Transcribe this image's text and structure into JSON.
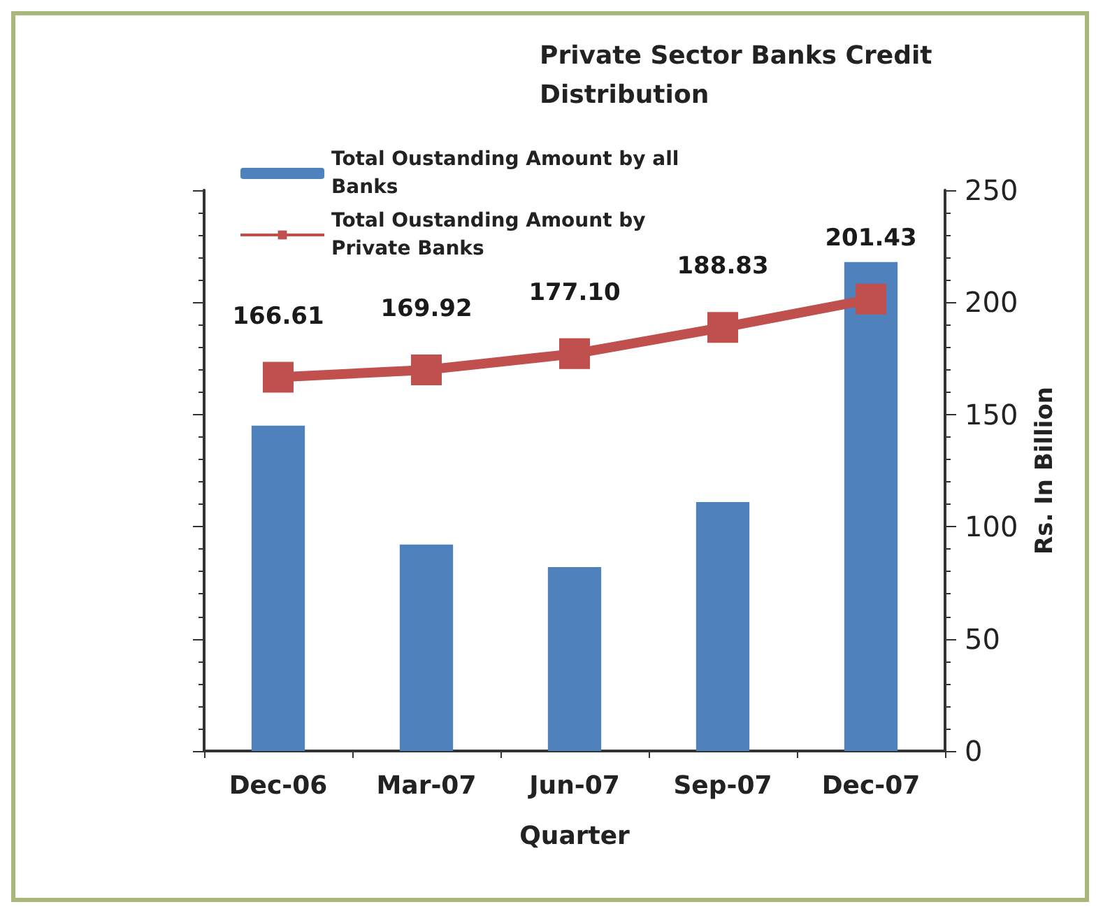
{
  "chart_data": {
    "type": "bar",
    "title": "Private Sector Banks Credit Distribution",
    "xlabel": "Quarter",
    "ylabel": "Rs. In Billion",
    "categories": [
      "Dec-06",
      "Mar-07",
      "Jun-07",
      "Sep-07",
      "Dec-07"
    ],
    "series": [
      {
        "name": "Total Oustanding Amount by all Banks",
        "color": "#4f81bd",
        "values": [
          145,
          92,
          82,
          111,
          218
        ]
      },
      {
        "name": "Total Oustanding Amount by Private Banks",
        "type": "line",
        "color": "#c0504d",
        "values": [
          166.61,
          169.92,
          177.1,
          188.83,
          201.43
        ],
        "value_labels": [
          "166.61",
          "169.92",
          "177.10",
          "188.83",
          "201.43"
        ]
      }
    ],
    "ylim": [
      0,
      250
    ],
    "yticks": [
      0,
      50,
      100,
      150,
      200,
      250
    ],
    "marker": "square",
    "line_style": "solid",
    "legend": "top left"
  }
}
